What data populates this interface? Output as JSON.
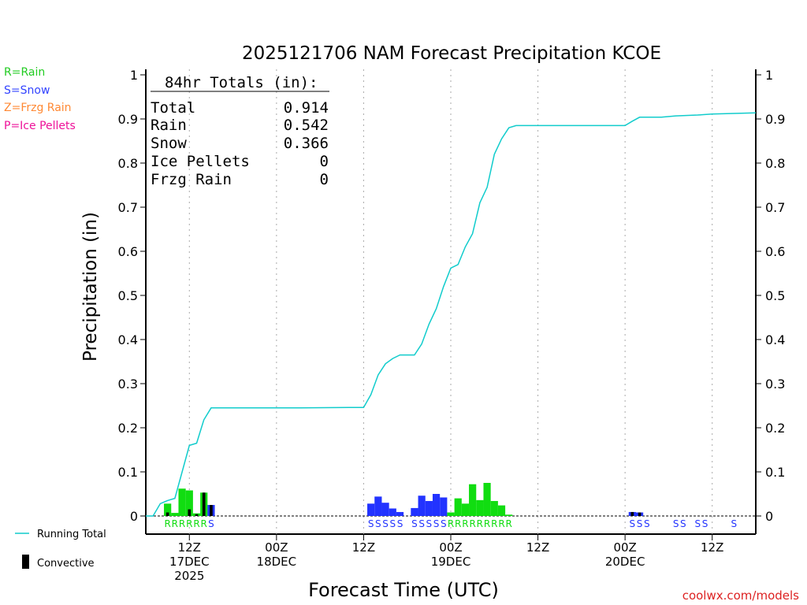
{
  "chart_data": {
    "type": "bar",
    "title": "2025121706 NAM Forecast Precipitation KCOE",
    "xlabel": "Forecast Time (UTC)",
    "ylabel": "Precipitation (in)",
    "ylim": [
      0,
      1
    ],
    "xlim_hours": [
      0,
      84
    ],
    "y_ticks": [
      "0",
      "0.1",
      "0.2",
      "0.3",
      "0.4",
      "0.5",
      "0.6",
      "0.7",
      "0.8",
      "0.9",
      "1"
    ],
    "x_ticks": [
      {
        "hour": 6,
        "lines": [
          "12Z",
          "17DEC",
          "2025"
        ]
      },
      {
        "hour": 18,
        "lines": [
          "00Z",
          "18DEC"
        ]
      },
      {
        "hour": 30,
        "lines": [
          "12Z"
        ]
      },
      {
        "hour": 42,
        "lines": [
          "00Z",
          "19DEC"
        ]
      },
      {
        "hour": 54,
        "lines": [
          "12Z"
        ]
      },
      {
        "hour": 66,
        "lines": [
          "00Z",
          "20DEC"
        ]
      },
      {
        "hour": 78,
        "lines": [
          "12Z"
        ]
      }
    ],
    "totals": {
      "header": "84hr Totals (in):",
      "rows": [
        {
          "label": "Total",
          "value": "0.914"
        },
        {
          "label": "Rain",
          "value": "0.542"
        },
        {
          "label": "Snow",
          "value": "0.366"
        },
        {
          "label": "Ice Pellets",
          "value": "0"
        },
        {
          "label": "Frzg Rain",
          "value": "0"
        }
      ]
    },
    "type_legend": [
      {
        "text": "R=Rain",
        "color": "#22cc22"
      },
      {
        "text": "S=Snow",
        "color": "#3344ff"
      },
      {
        "text": "Z=Frzg Rain",
        "color": "#ff8833"
      },
      {
        "text": "P=Ice Pellets",
        "color": "#ee1199"
      }
    ],
    "series_legend": {
      "running_total": "Running Total",
      "convective": "Convective"
    },
    "credit": "coolwx.com/models",
    "colors": {
      "rain": "#11dd11",
      "snow": "#2233ff",
      "running_total": "#11cccc",
      "convective": "#000000",
      "grid": "#aaaaaa"
    },
    "precip_bars": [
      {
        "hour": 3,
        "value": 0.028,
        "type": "rain",
        "conv": 0.008
      },
      {
        "hour": 4,
        "value": 0.007,
        "type": "rain",
        "conv": 0
      },
      {
        "hour": 5,
        "value": 0.062,
        "type": "rain",
        "conv": 0
      },
      {
        "hour": 6,
        "value": 0.058,
        "type": "rain",
        "conv": 0.015
      },
      {
        "hour": 7,
        "value": 0.006,
        "type": "rain",
        "conv": 0.004
      },
      {
        "hour": 8,
        "value": 0.053,
        "type": "rain",
        "conv": 0.053
      },
      {
        "hour": 9,
        "value": 0.025,
        "type": "snow",
        "conv": 0.025
      },
      {
        "hour": 31,
        "value": 0.028,
        "type": "snow",
        "conv": 0
      },
      {
        "hour": 32,
        "value": 0.044,
        "type": "snow",
        "conv": 0
      },
      {
        "hour": 33,
        "value": 0.03,
        "type": "snow",
        "conv": 0
      },
      {
        "hour": 34,
        "value": 0.017,
        "type": "snow",
        "conv": 0
      },
      {
        "hour": 35,
        "value": 0.009,
        "type": "snow",
        "conv": 0
      },
      {
        "hour": 37,
        "value": 0.018,
        "type": "snow",
        "conv": 0
      },
      {
        "hour": 38,
        "value": 0.046,
        "type": "snow",
        "conv": 0
      },
      {
        "hour": 39,
        "value": 0.034,
        "type": "snow",
        "conv": 0
      },
      {
        "hour": 40,
        "value": 0.05,
        "type": "snow",
        "conv": 0
      },
      {
        "hour": 41,
        "value": 0.042,
        "type": "snow",
        "conv": 0
      },
      {
        "hour": 42,
        "value": 0.008,
        "type": "rain",
        "conv": 0
      },
      {
        "hour": 43,
        "value": 0.04,
        "type": "rain",
        "conv": 0
      },
      {
        "hour": 44,
        "value": 0.028,
        "type": "rain",
        "conv": 0
      },
      {
        "hour": 45,
        "value": 0.072,
        "type": "rain",
        "conv": 0
      },
      {
        "hour": 46,
        "value": 0.036,
        "type": "rain",
        "conv": 0
      },
      {
        "hour": 47,
        "value": 0.075,
        "type": "rain",
        "conv": 0
      },
      {
        "hour": 48,
        "value": 0.034,
        "type": "rain",
        "conv": 0
      },
      {
        "hour": 49,
        "value": 0.024,
        "type": "rain",
        "conv": 0
      },
      {
        "hour": 50,
        "value": 0.003,
        "type": "rain",
        "conv": 0
      },
      {
        "hour": 67,
        "value": 0.009,
        "type": "snow",
        "conv": 0.009
      },
      {
        "hour": 68,
        "value": 0.008,
        "type": "snow",
        "conv": 0.008
      }
    ],
    "type_codes": [
      {
        "hour": 3,
        "code": "R",
        "type": "rain"
      },
      {
        "hour": 4,
        "code": "R",
        "type": "rain"
      },
      {
        "hour": 5,
        "code": "R",
        "type": "rain"
      },
      {
        "hour": 6,
        "code": "R",
        "type": "rain"
      },
      {
        "hour": 7,
        "code": "R",
        "type": "rain"
      },
      {
        "hour": 8,
        "code": "R",
        "type": "rain"
      },
      {
        "hour": 9,
        "code": "S",
        "type": "snow"
      },
      {
        "hour": 31,
        "code": "S",
        "type": "snow"
      },
      {
        "hour": 32,
        "code": "S",
        "type": "snow"
      },
      {
        "hour": 33,
        "code": "S",
        "type": "snow"
      },
      {
        "hour": 34,
        "code": "S",
        "type": "snow"
      },
      {
        "hour": 35,
        "code": "S",
        "type": "snow"
      },
      {
        "hour": 37,
        "code": "S",
        "type": "snow"
      },
      {
        "hour": 38,
        "code": "S",
        "type": "snow"
      },
      {
        "hour": 39,
        "code": "S",
        "type": "snow"
      },
      {
        "hour": 40,
        "code": "S",
        "type": "snow"
      },
      {
        "hour": 41,
        "code": "S",
        "type": "snow"
      },
      {
        "hour": 42,
        "code": "R",
        "type": "rain"
      },
      {
        "hour": 43,
        "code": "R",
        "type": "rain"
      },
      {
        "hour": 44,
        "code": "R",
        "type": "rain"
      },
      {
        "hour": 45,
        "code": "R",
        "type": "rain"
      },
      {
        "hour": 46,
        "code": "R",
        "type": "rain"
      },
      {
        "hour": 47,
        "code": "R",
        "type": "rain"
      },
      {
        "hour": 48,
        "code": "R",
        "type": "rain"
      },
      {
        "hour": 49,
        "code": "R",
        "type": "rain"
      },
      {
        "hour": 50,
        "code": "R",
        "type": "rain"
      },
      {
        "hour": 67,
        "code": "S",
        "type": "snow"
      },
      {
        "hour": 68,
        "code": "S",
        "type": "snow"
      },
      {
        "hour": 69,
        "code": "S",
        "type": "snow"
      },
      {
        "hour": 73,
        "code": "S",
        "type": "snow"
      },
      {
        "hour": 74,
        "code": "S",
        "type": "snow"
      },
      {
        "hour": 76,
        "code": "S",
        "type": "snow"
      },
      {
        "hour": 77,
        "code": "S",
        "type": "snow"
      },
      {
        "hour": 81,
        "code": "S",
        "type": "snow"
      }
    ],
    "running_total": [
      [
        0,
        0
      ],
      [
        1,
        0
      ],
      [
        2,
        0.028
      ],
      [
        3,
        0.035
      ],
      [
        4,
        0.04
      ],
      [
        5,
        0.1
      ],
      [
        6,
        0.16
      ],
      [
        7,
        0.165
      ],
      [
        8,
        0.218
      ],
      [
        9,
        0.245
      ],
      [
        10,
        0.245
      ],
      [
        20,
        0.245
      ],
      [
        28,
        0.246
      ],
      [
        30,
        0.246
      ],
      [
        31,
        0.275
      ],
      [
        32,
        0.32
      ],
      [
        33,
        0.345
      ],
      [
        34,
        0.357
      ],
      [
        35,
        0.365
      ],
      [
        36,
        0.365
      ],
      [
        37,
        0.365
      ],
      [
        38,
        0.39
      ],
      [
        39,
        0.435
      ],
      [
        40,
        0.47
      ],
      [
        41,
        0.52
      ],
      [
        42,
        0.562
      ],
      [
        43,
        0.57
      ],
      [
        44,
        0.61
      ],
      [
        45,
        0.64
      ],
      [
        46,
        0.71
      ],
      [
        47,
        0.745
      ],
      [
        48,
        0.82
      ],
      [
        49,
        0.855
      ],
      [
        50,
        0.88
      ],
      [
        51,
        0.885
      ],
      [
        55,
        0.885
      ],
      [
        61,
        0.885
      ],
      [
        66,
        0.885
      ],
      [
        67,
        0.895
      ],
      [
        68,
        0.904
      ],
      [
        71,
        0.904
      ],
      [
        73,
        0.907
      ],
      [
        76,
        0.909
      ],
      [
        78,
        0.911
      ],
      [
        84,
        0.914
      ]
    ]
  }
}
